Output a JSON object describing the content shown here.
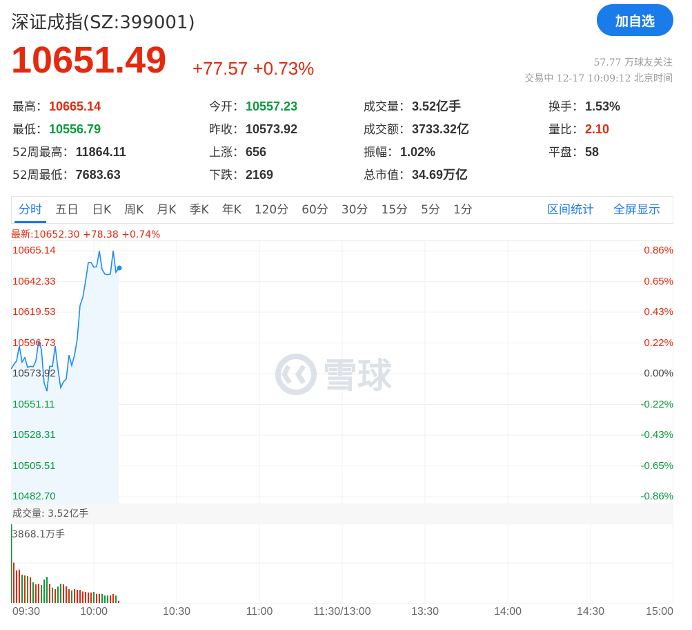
{
  "header": {
    "title": "深证成指(SZ:399001)",
    "add_button": "加自选",
    "price": "10651.49",
    "change": "+77.57",
    "change_pct": "+0.73%",
    "followers": "57.77 万球友关注",
    "status": "交易中 12-17 10:09:12 北京时间"
  },
  "stats": [
    {
      "label": "最高：",
      "value": "10665.14",
      "color": "red"
    },
    {
      "label": "今开：",
      "value": "10557.23",
      "color": "green"
    },
    {
      "label": "成交量：",
      "value": "3.52亿手",
      "color": ""
    },
    {
      "label": "换手：",
      "value": "1.53%",
      "color": ""
    },
    {
      "label": "最低：",
      "value": "10556.79",
      "color": "green"
    },
    {
      "label": "昨收：",
      "value": "10573.92",
      "color": ""
    },
    {
      "label": "成交额：",
      "value": "3733.32亿",
      "color": ""
    },
    {
      "label": "量比：",
      "value": "2.10",
      "color": "red"
    },
    {
      "label": "52周最高：",
      "value": "11864.11",
      "color": ""
    },
    {
      "label": "上涨：",
      "value": "656",
      "color": ""
    },
    {
      "label": "振幅：",
      "value": "1.02%",
      "color": ""
    },
    {
      "label": "平盘：",
      "value": "58",
      "color": ""
    },
    {
      "label": "52周最低：",
      "value": "7683.63",
      "color": ""
    },
    {
      "label": "下跌：",
      "value": "2169",
      "color": ""
    },
    {
      "label": "总市值：",
      "value": "34.69万亿",
      "color": ""
    }
  ],
  "tabs": [
    "分时",
    "五日",
    "日K",
    "周K",
    "月K",
    "季K",
    "年K",
    "120分",
    "60分",
    "30分",
    "15分",
    "5分",
    "1分"
  ],
  "active_tab": "分时",
  "right_tabs": [
    "区间统计",
    "全屏显示"
  ],
  "chart": {
    "latest": "最新:10652.30 +78.38 +0.74%",
    "price_labels": [
      "10665.14",
      "10642.33",
      "10619.53",
      "10596.73",
      "10573.92",
      "10551.11",
      "10528.31",
      "10505.51",
      "10482.70"
    ],
    "pct_labels": [
      "0.86%",
      "0.65%",
      "0.43%",
      "0.22%",
      "0.00%",
      "-0.22%",
      "-0.43%",
      "-0.65%",
      "-0.86%"
    ],
    "volume_title": "成交量: 3.52亿手",
    "volume_max_label": "3868.1万手",
    "time_labels": [
      "09:30",
      "10:00",
      "10:30",
      "11:00",
      "11:30/13:00",
      "13:30",
      "14:00",
      "14:30",
      "15:00"
    ],
    "watermark": "雪球",
    "colors": {
      "up": "#e4290f",
      "down": "#0a9a3c",
      "line": "#1a8cff",
      "fill": "#eef6fe"
    }
  },
  "chart_data": {
    "type": "line",
    "x_unit": "minutes since 09:30",
    "ylim": [
      10482.7,
      10665.14
    ],
    "prev_close": 10573.92,
    "prices": [
      10577.4,
      10580.8,
      10583.4,
      10594.5,
      10582.5,
      10585.9,
      10578.7,
      10579.4,
      10579.1,
      10583.4,
      10598.0,
      10592.0,
      10567.1,
      10561.0,
      10579.4,
      10579.4,
      10594.5,
      10577.4,
      10563.6,
      10567.9,
      10570.0,
      10587.7,
      10580.0,
      10587.7,
      10599.7,
      10624.6,
      10630.6,
      10642.6,
      10656.4,
      10656.4,
      10652.9,
      10653.3,
      10665.0,
      10651.2,
      10647.8,
      10647.4,
      10647.8,
      10665.1,
      10649.2,
      10652.3
    ],
    "volume_max": 3868.1,
    "volumes": [
      3868.1,
      1979,
      1606,
      1640,
      1391,
      1357,
      1323,
      1267,
      1018,
      927,
      950,
      882,
      1154,
      1289,
      950,
      758,
      679,
      814,
      950,
      927,
      826,
      679,
      622,
      679,
      645,
      645,
      566,
      543,
      520,
      520,
      543,
      452,
      452,
      452,
      373,
      373,
      373,
      441,
      373,
      113
    ],
    "volume_dir": [
      "d",
      "u",
      "u",
      "u",
      "d",
      "u",
      "d",
      "u",
      "d",
      "u",
      "u",
      "d",
      "d",
      "d",
      "u",
      "d",
      "u",
      "d",
      "d",
      "u",
      "u",
      "u",
      "d",
      "u",
      "u",
      "u",
      "u",
      "u",
      "u",
      "u",
      "d",
      "u",
      "u",
      "d",
      "d",
      "d",
      "u",
      "u",
      "d",
      "u"
    ]
  }
}
